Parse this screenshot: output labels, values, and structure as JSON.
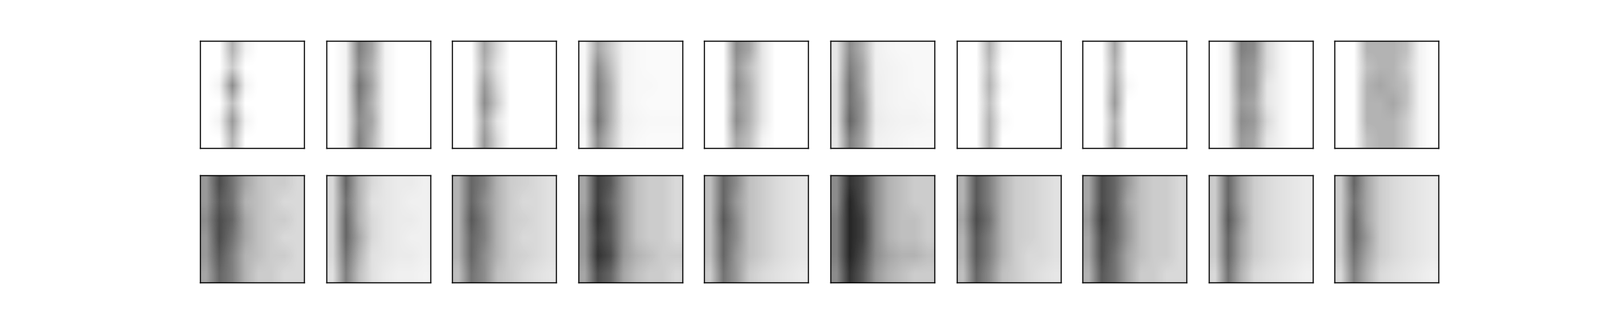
{
  "chart_data": [
    {
      "type": "heatmap",
      "tick_labels": false,
      "color_range": [
        0,
        1
      ],
      "cells": [
        [
          0,
          0,
          0.3,
          0.05,
          0,
          0,
          0,
          0
        ],
        [
          0,
          0,
          0.2,
          0,
          0,
          0,
          0,
          0
        ],
        [
          0,
          0.05,
          0.45,
          0.05,
          0,
          0,
          0,
          0
        ],
        [
          0,
          0,
          0.25,
          0,
          0,
          0,
          0,
          0
        ],
        [
          0,
          0.05,
          0.4,
          0.05,
          0,
          0,
          0,
          0
        ],
        [
          0,
          0,
          0.3,
          0,
          0,
          0,
          0,
          0
        ]
      ]
    },
    {
      "type": "heatmap",
      "tick_labels": false,
      "color_range": [
        0,
        1
      ],
      "cells": [
        [
          0,
          0.05,
          0.5,
          0.35,
          0.05,
          0,
          0,
          0
        ],
        [
          0,
          0.05,
          0.45,
          0.3,
          0.05,
          0,
          0,
          0
        ],
        [
          0,
          0.05,
          0.55,
          0.35,
          0.05,
          0,
          0,
          0
        ],
        [
          0,
          0.05,
          0.5,
          0.3,
          0.05,
          0,
          0,
          0
        ],
        [
          0,
          0.05,
          0.45,
          0.35,
          0.05,
          0,
          0,
          0
        ],
        [
          0,
          0.05,
          0.5,
          0.3,
          0.05,
          0,
          0,
          0
        ]
      ]
    },
    {
      "type": "heatmap",
      "tick_labels": false,
      "color_range": [
        0,
        1
      ],
      "cells": [
        [
          0,
          0,
          0.35,
          0.15,
          0,
          0,
          0,
          0
        ],
        [
          0,
          0,
          0.3,
          0.1,
          0,
          0,
          0,
          0
        ],
        [
          0,
          0,
          0.4,
          0.15,
          0,
          0,
          0,
          0
        ],
        [
          0,
          0,
          0.45,
          0.2,
          0,
          0,
          0,
          0
        ],
        [
          0,
          0,
          0.35,
          0.1,
          0,
          0,
          0,
          0
        ],
        [
          0,
          0,
          0.4,
          0.15,
          0,
          0,
          0,
          0
        ]
      ]
    },
    {
      "type": "heatmap",
      "tick_labels": false,
      "color_range": [
        0,
        1
      ],
      "cells": [
        [
          0.03,
          0.35,
          0.2,
          0.05,
          0.03,
          0.02,
          0.02,
          0.02
        ],
        [
          0.03,
          0.45,
          0.25,
          0.05,
          0.03,
          0.02,
          0.02,
          0.02
        ],
        [
          0.03,
          0.5,
          0.3,
          0.05,
          0.03,
          0.03,
          0.02,
          0.02
        ],
        [
          0.03,
          0.5,
          0.3,
          0.05,
          0.03,
          0.02,
          0.02,
          0.02
        ],
        [
          0.05,
          0.55,
          0.3,
          0.06,
          0.04,
          0.03,
          0.03,
          0.03
        ],
        [
          0.03,
          0.45,
          0.25,
          0.05,
          0.03,
          0.02,
          0.02,
          0.02
        ]
      ]
    },
    {
      "type": "heatmap",
      "tick_labels": false,
      "color_range": [
        0,
        1
      ],
      "cells": [
        [
          0,
          0,
          0.45,
          0.35,
          0.1,
          0,
          0,
          0
        ],
        [
          0,
          0,
          0.4,
          0.25,
          0.1,
          0,
          0,
          0
        ],
        [
          0,
          0,
          0.45,
          0.3,
          0.1,
          0,
          0,
          0
        ],
        [
          0,
          0,
          0.4,
          0.3,
          0.1,
          0,
          0,
          0
        ],
        [
          0,
          0,
          0.45,
          0.3,
          0.1,
          0,
          0,
          0
        ],
        [
          0,
          0,
          0.35,
          0.25,
          0.05,
          0,
          0,
          0
        ]
      ]
    },
    {
      "type": "heatmap",
      "tick_labels": false,
      "color_range": [
        0,
        1
      ],
      "cells": [
        [
          0.1,
          0.45,
          0.3,
          0.06,
          0.04,
          0.03,
          0.03,
          0.03
        ],
        [
          0.1,
          0.5,
          0.35,
          0.06,
          0.05,
          0.04,
          0.03,
          0.03
        ],
        [
          0.12,
          0.55,
          0.35,
          0.07,
          0.05,
          0.04,
          0.03,
          0.03
        ],
        [
          0.12,
          0.55,
          0.4,
          0.07,
          0.05,
          0.04,
          0.04,
          0.03
        ],
        [
          0.12,
          0.6,
          0.4,
          0.08,
          0.06,
          0.05,
          0.05,
          0.04
        ],
        [
          0.1,
          0.5,
          0.35,
          0.06,
          0.05,
          0.04,
          0.03,
          0.03
        ]
      ]
    },
    {
      "type": "heatmap",
      "tick_labels": false,
      "color_range": [
        0,
        1
      ],
      "cells": [
        [
          0,
          0,
          0.3,
          0.03,
          0,
          0,
          0,
          0
        ],
        [
          0,
          0,
          0.25,
          0,
          0,
          0,
          0,
          0
        ],
        [
          0,
          0,
          0.3,
          0.03,
          0,
          0,
          0,
          0
        ],
        [
          0,
          0,
          0.25,
          0,
          0,
          0,
          0,
          0
        ],
        [
          0,
          0,
          0.3,
          0.03,
          0,
          0,
          0,
          0
        ],
        [
          0,
          0,
          0.3,
          0,
          0,
          0,
          0,
          0
        ]
      ]
    },
    {
      "type": "heatmap",
      "tick_labels": false,
      "color_range": [
        0,
        1
      ],
      "cells": [
        [
          0,
          0,
          0.35,
          0,
          0,
          0,
          0,
          0
        ],
        [
          0,
          0,
          0.3,
          0,
          0,
          0,
          0,
          0
        ],
        [
          0,
          0,
          0.35,
          0.03,
          0,
          0,
          0,
          0
        ],
        [
          0,
          0,
          0.4,
          0,
          0,
          0,
          0,
          0
        ],
        [
          0,
          0,
          0.3,
          0,
          0,
          0,
          0,
          0
        ],
        [
          0,
          0,
          0.35,
          0,
          0,
          0,
          0,
          0
        ]
      ]
    },
    {
      "type": "heatmap",
      "tick_labels": false,
      "color_range": [
        0,
        1
      ],
      "cells": [
        [
          0,
          0.05,
          0.5,
          0.45,
          0.15,
          0.05,
          0,
          0
        ],
        [
          0,
          0.05,
          0.45,
          0.4,
          0.15,
          0.05,
          0,
          0
        ],
        [
          0,
          0.05,
          0.45,
          0.4,
          0.1,
          0.05,
          0,
          0
        ],
        [
          0,
          0.05,
          0.4,
          0.35,
          0.1,
          0.05,
          0,
          0
        ],
        [
          0,
          0.05,
          0.45,
          0.4,
          0.15,
          0.05,
          0,
          0
        ],
        [
          0,
          0.05,
          0.4,
          0.35,
          0.1,
          0.05,
          0,
          0
        ]
      ]
    },
    {
      "type": "heatmap",
      "tick_labels": false,
      "color_range": [
        0,
        1
      ],
      "cells": [
        [
          0,
          0,
          0.3,
          0.3,
          0.3,
          0.25,
          0.05,
          0
        ],
        [
          0,
          0,
          0.25,
          0.3,
          0.3,
          0.2,
          0.05,
          0
        ],
        [
          0,
          0,
          0.3,
          0.35,
          0.3,
          0.25,
          0.05,
          0
        ],
        [
          0,
          0,
          0.3,
          0.3,
          0.35,
          0.25,
          0.05,
          0
        ],
        [
          0,
          0,
          0.3,
          0.3,
          0.3,
          0.2,
          0.05,
          0
        ],
        [
          0,
          0,
          0.25,
          0.3,
          0.3,
          0.2,
          0.05,
          0
        ]
      ]
    },
    {
      "type": "heatmap",
      "tick_labels": false,
      "color_range": [
        0,
        1
      ],
      "cells": [
        [
          0.4,
          0.7,
          0.55,
          0.35,
          0.25,
          0.2,
          0.2,
          0.15
        ],
        [
          0.4,
          0.65,
          0.55,
          0.3,
          0.25,
          0.2,
          0.15,
          0.15
        ],
        [
          0.45,
          0.7,
          0.6,
          0.35,
          0.25,
          0.2,
          0.2,
          0.15
        ],
        [
          0.4,
          0.7,
          0.55,
          0.35,
          0.25,
          0.2,
          0.15,
          0.15
        ],
        [
          0.4,
          0.65,
          0.5,
          0.3,
          0.25,
          0.2,
          0.2,
          0.15
        ],
        [
          0.35,
          0.6,
          0.5,
          0.3,
          0.2,
          0.2,
          0.15,
          0.15
        ]
      ]
    },
    {
      "type": "heatmap",
      "tick_labels": false,
      "color_range": [
        0,
        1
      ],
      "cells": [
        [
          0.15,
          0.6,
          0.3,
          0.15,
          0.1,
          0.08,
          0.08,
          0.06
        ],
        [
          0.15,
          0.55,
          0.3,
          0.12,
          0.1,
          0.08,
          0.06,
          0.06
        ],
        [
          0.15,
          0.6,
          0.3,
          0.15,
          0.1,
          0.08,
          0.08,
          0.06
        ],
        [
          0.15,
          0.6,
          0.35,
          0.15,
          0.1,
          0.08,
          0.06,
          0.06
        ],
        [
          0.15,
          0.55,
          0.3,
          0.12,
          0.1,
          0.08,
          0.08,
          0.06
        ],
        [
          0.12,
          0.5,
          0.25,
          0.12,
          0.08,
          0.06,
          0.06,
          0.05
        ]
      ]
    },
    {
      "type": "heatmap",
      "tick_labels": false,
      "color_range": [
        0,
        1
      ],
      "cells": [
        [
          0.3,
          0.6,
          0.5,
          0.3,
          0.2,
          0.18,
          0.15,
          0.12
        ],
        [
          0.3,
          0.6,
          0.45,
          0.3,
          0.2,
          0.15,
          0.15,
          0.12
        ],
        [
          0.3,
          0.65,
          0.5,
          0.3,
          0.2,
          0.18,
          0.15,
          0.12
        ],
        [
          0.3,
          0.6,
          0.5,
          0.3,
          0.2,
          0.15,
          0.15,
          0.12
        ],
        [
          0.3,
          0.6,
          0.45,
          0.3,
          0.2,
          0.18,
          0.15,
          0.12
        ],
        [
          0.25,
          0.55,
          0.45,
          0.25,
          0.2,
          0.15,
          0.12,
          0.1
        ]
      ]
    },
    {
      "type": "heatmap",
      "tick_labels": false,
      "color_range": [
        0,
        1
      ],
      "cells": [
        [
          0.35,
          0.75,
          0.65,
          0.4,
          0.25,
          0.2,
          0.2,
          0.15
        ],
        [
          0.35,
          0.75,
          0.6,
          0.4,
          0.25,
          0.2,
          0.2,
          0.15
        ],
        [
          0.4,
          0.8,
          0.65,
          0.4,
          0.25,
          0.2,
          0.2,
          0.15
        ],
        [
          0.4,
          0.75,
          0.65,
          0.4,
          0.25,
          0.2,
          0.2,
          0.15
        ],
        [
          0.4,
          0.8,
          0.7,
          0.4,
          0.3,
          0.25,
          0.2,
          0.2
        ],
        [
          0.35,
          0.7,
          0.6,
          0.35,
          0.25,
          0.2,
          0.2,
          0.15
        ]
      ]
    },
    {
      "type": "heatmap",
      "tick_labels": false,
      "color_range": [
        0,
        1
      ],
      "cells": [
        [
          0.25,
          0.6,
          0.45,
          0.25,
          0.2,
          0.15,
          0.12,
          0.1
        ],
        [
          0.25,
          0.6,
          0.4,
          0.25,
          0.2,
          0.15,
          0.12,
          0.1
        ],
        [
          0.25,
          0.65,
          0.45,
          0.25,
          0.2,
          0.15,
          0.12,
          0.1
        ],
        [
          0.25,
          0.6,
          0.45,
          0.25,
          0.2,
          0.15,
          0.12,
          0.1
        ],
        [
          0.25,
          0.6,
          0.4,
          0.25,
          0.2,
          0.15,
          0.12,
          0.1
        ],
        [
          0.2,
          0.55,
          0.4,
          0.2,
          0.15,
          0.12,
          0.1,
          0.08
        ]
      ]
    },
    {
      "type": "heatmap",
      "tick_labels": false,
      "color_range": [
        0,
        1
      ],
      "cells": [
        [
          0.45,
          0.8,
          0.7,
          0.45,
          0.3,
          0.25,
          0.2,
          0.2
        ],
        [
          0.45,
          0.85,
          0.7,
          0.45,
          0.3,
          0.25,
          0.2,
          0.2
        ],
        [
          0.5,
          0.85,
          0.75,
          0.45,
          0.3,
          0.25,
          0.25,
          0.2
        ],
        [
          0.5,
          0.85,
          0.75,
          0.45,
          0.3,
          0.25,
          0.25,
          0.2
        ],
        [
          0.5,
          0.85,
          0.7,
          0.45,
          0.35,
          0.3,
          0.3,
          0.25
        ],
        [
          0.45,
          0.8,
          0.65,
          0.4,
          0.3,
          0.25,
          0.2,
          0.2
        ]
      ]
    },
    {
      "type": "heatmap",
      "tick_labels": false,
      "color_range": [
        0,
        1
      ],
      "cells": [
        [
          0.3,
          0.65,
          0.5,
          0.3,
          0.2,
          0.18,
          0.15,
          0.12
        ],
        [
          0.3,
          0.65,
          0.5,
          0.3,
          0.2,
          0.18,
          0.15,
          0.12
        ],
        [
          0.35,
          0.7,
          0.55,
          0.3,
          0.2,
          0.18,
          0.15,
          0.12
        ],
        [
          0.3,
          0.65,
          0.5,
          0.3,
          0.2,
          0.18,
          0.15,
          0.12
        ],
        [
          0.3,
          0.65,
          0.5,
          0.3,
          0.2,
          0.15,
          0.15,
          0.12
        ],
        [
          0.25,
          0.6,
          0.45,
          0.25,
          0.2,
          0.15,
          0.12,
          0.1
        ]
      ]
    },
    {
      "type": "heatmap",
      "tick_labels": false,
      "color_range": [
        0,
        1
      ],
      "cells": [
        [
          0.35,
          0.7,
          0.6,
          0.4,
          0.25,
          0.2,
          0.2,
          0.15
        ],
        [
          0.35,
          0.7,
          0.6,
          0.35,
          0.25,
          0.2,
          0.2,
          0.15
        ],
        [
          0.4,
          0.75,
          0.6,
          0.4,
          0.25,
          0.2,
          0.2,
          0.15
        ],
        [
          0.35,
          0.7,
          0.6,
          0.4,
          0.25,
          0.2,
          0.2,
          0.15
        ],
        [
          0.35,
          0.7,
          0.55,
          0.35,
          0.25,
          0.2,
          0.2,
          0.15
        ],
        [
          0.3,
          0.65,
          0.55,
          0.35,
          0.2,
          0.2,
          0.15,
          0.15
        ]
      ]
    },
    {
      "type": "heatmap",
      "tick_labels": false,
      "color_range": [
        0,
        1
      ],
      "cells": [
        [
          0.2,
          0.6,
          0.35,
          0.2,
          0.15,
          0.12,
          0.1,
          0.08
        ],
        [
          0.2,
          0.6,
          0.35,
          0.2,
          0.15,
          0.12,
          0.1,
          0.08
        ],
        [
          0.2,
          0.65,
          0.4,
          0.2,
          0.15,
          0.12,
          0.1,
          0.08
        ],
        [
          0.2,
          0.6,
          0.35,
          0.2,
          0.15,
          0.12,
          0.1,
          0.08
        ],
        [
          0.2,
          0.6,
          0.35,
          0.2,
          0.15,
          0.12,
          0.1,
          0.08
        ],
        [
          0.15,
          0.55,
          0.3,
          0.15,
          0.12,
          0.1,
          0.08,
          0.06
        ]
      ]
    },
    {
      "type": "heatmap",
      "tick_labels": false,
      "color_range": [
        0,
        1
      ],
      "cells": [
        [
          0.2,
          0.6,
          0.35,
          0.2,
          0.15,
          0.12,
          0.1,
          0.08
        ],
        [
          0.2,
          0.55,
          0.35,
          0.2,
          0.15,
          0.12,
          0.1,
          0.08
        ],
        [
          0.2,
          0.6,
          0.35,
          0.2,
          0.15,
          0.12,
          0.1,
          0.08
        ],
        [
          0.2,
          0.6,
          0.4,
          0.2,
          0.15,
          0.12,
          0.1,
          0.08
        ],
        [
          0.2,
          0.55,
          0.35,
          0.2,
          0.15,
          0.12,
          0.1,
          0.08
        ],
        [
          0.15,
          0.5,
          0.3,
          0.15,
          0.12,
          0.1,
          0.08,
          0.06
        ]
      ]
    }
  ]
}
